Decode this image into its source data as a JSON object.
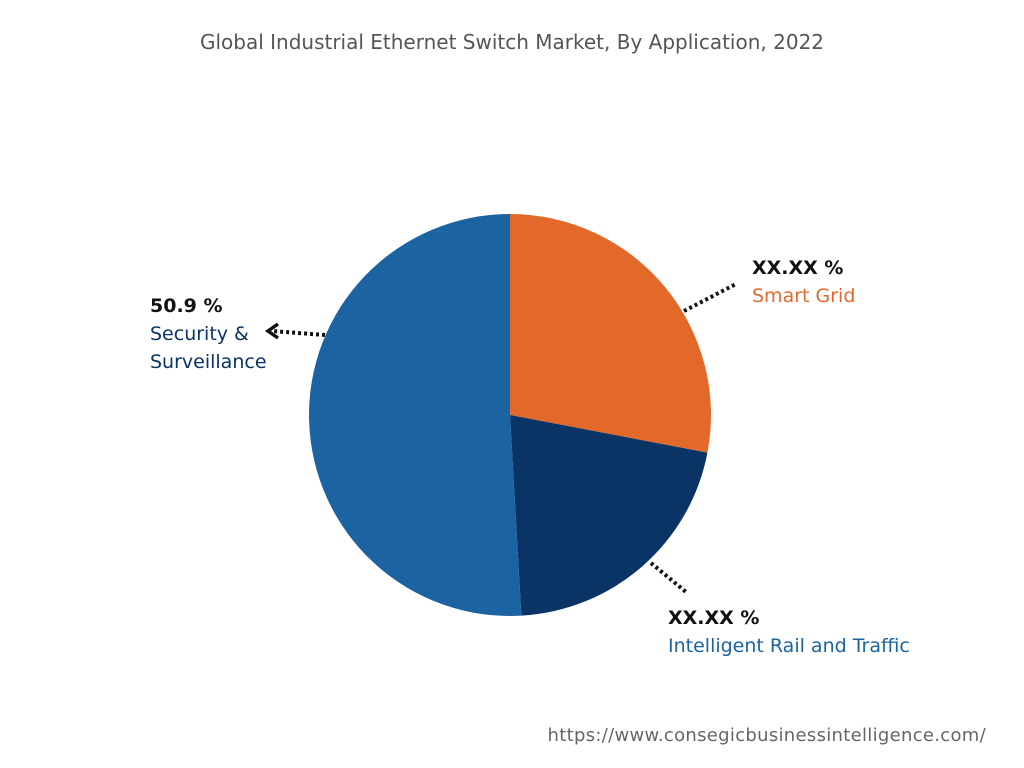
{
  "chart_data": {
    "type": "pie",
    "title": "Global Industrial Ethernet Switch Market, By Application, 2022",
    "start_angle": "top",
    "direction": "clockwise",
    "slices": [
      {
        "name": "Smart Grid",
        "value": 28.0,
        "label_value": "XX.XX %",
        "color": "#E3692A"
      },
      {
        "name": "Intelligent Rail and Traffic",
        "value": 21.1,
        "label_value": "XX.XX %",
        "color": "#0B3466"
      },
      {
        "name": "Security & Surveillance",
        "value": 50.9,
        "label_value": "50.9 %",
        "color": "#1B63A1"
      }
    ]
  },
  "watermark": "https://www.consegicbusinessintelligence.com/"
}
